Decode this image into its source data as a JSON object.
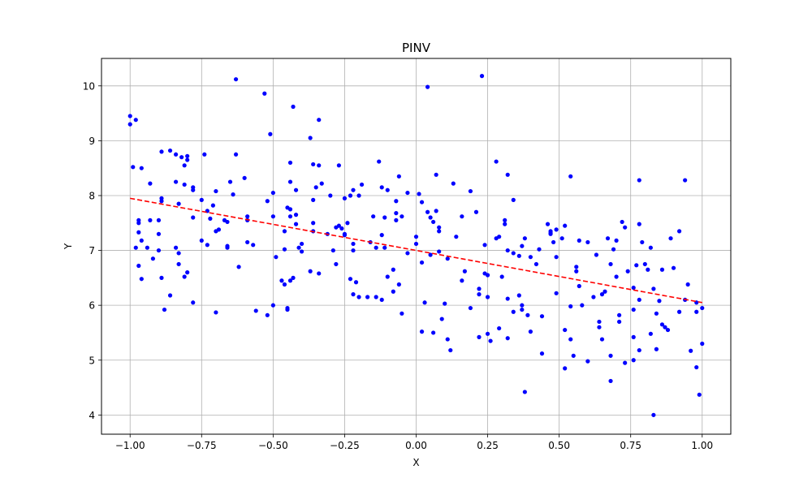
{
  "chart_data": {
    "type": "scatter",
    "title": "PINV",
    "xlabel": "X",
    "ylabel": "Y",
    "xlim": [
      -1.1,
      1.1
    ],
    "ylim": [
      3.65,
      10.5
    ],
    "grid": true,
    "x_ticks": [
      -1.0,
      -0.75,
      -0.5,
      -0.25,
      0.0,
      0.25,
      0.5,
      0.75,
      1.0
    ],
    "x_tick_labels": [
      "−1.00",
      "−0.75",
      "−0.50",
      "−0.25",
      "0.00",
      "0.25",
      "0.50",
      "0.75",
      "1.00"
    ],
    "y_ticks": [
      4,
      5,
      6,
      7,
      8,
      9,
      10
    ],
    "y_tick_labels": [
      "4",
      "5",
      "6",
      "7",
      "8",
      "9",
      "10"
    ],
    "series": [
      {
        "type": "scatter",
        "color": "#0000ff",
        "points": [
          [
            -1.0,
            9.45
          ],
          [
            -1.0,
            9.3
          ],
          [
            -0.98,
            9.38
          ],
          [
            -0.99,
            8.52
          ],
          [
            -0.96,
            8.5
          ],
          [
            -0.97,
            7.55
          ],
          [
            -0.97,
            7.5
          ],
          [
            -0.98,
            7.05
          ],
          [
            -0.97,
            7.33
          ],
          [
            -0.96,
            7.18
          ],
          [
            -0.97,
            6.72
          ],
          [
            -0.96,
            6.48
          ],
          [
            -0.93,
            8.22
          ],
          [
            -0.93,
            7.55
          ],
          [
            -0.94,
            7.05
          ],
          [
            -0.92,
            6.85
          ],
          [
            -0.9,
            7.55
          ],
          [
            -0.9,
            7.3
          ],
          [
            -0.89,
            7.95
          ],
          [
            -0.89,
            7.9
          ],
          [
            -0.89,
            8.8
          ],
          [
            -0.9,
            7.0
          ],
          [
            -0.89,
            6.5
          ],
          [
            -0.88,
            5.92
          ],
          [
            -0.86,
            8.82
          ],
          [
            -0.86,
            6.18
          ],
          [
            -0.84,
            8.75
          ],
          [
            -0.84,
            8.25
          ],
          [
            -0.83,
            7.85
          ],
          [
            -0.84,
            7.05
          ],
          [
            -0.83,
            6.95
          ],
          [
            -0.83,
            6.75
          ],
          [
            -0.82,
            8.7
          ],
          [
            -0.81,
            8.55
          ],
          [
            -0.81,
            8.2
          ],
          [
            -0.8,
            8.65
          ],
          [
            -0.8,
            8.72
          ],
          [
            -0.8,
            6.6
          ],
          [
            -0.81,
            6.52
          ],
          [
            -0.78,
            8.15
          ],
          [
            -0.78,
            8.1
          ],
          [
            -0.78,
            7.6
          ],
          [
            -0.78,
            6.05
          ],
          [
            -0.75,
            7.92
          ],
          [
            -0.75,
            7.18
          ],
          [
            -0.74,
            8.75
          ],
          [
            -0.73,
            7.72
          ],
          [
            -0.73,
            7.1
          ],
          [
            -0.72,
            7.58
          ],
          [
            -0.71,
            7.82
          ],
          [
            -0.7,
            8.08
          ],
          [
            -0.7,
            7.35
          ],
          [
            -0.69,
            7.38
          ],
          [
            -0.7,
            5.87
          ],
          [
            -0.67,
            7.55
          ],
          [
            -0.66,
            7.52
          ],
          [
            -0.66,
            7.08
          ],
          [
            -0.66,
            7.05
          ],
          [
            -0.65,
            8.25
          ],
          [
            -0.64,
            8.02
          ],
          [
            -0.63,
            10.12
          ],
          [
            -0.63,
            8.75
          ],
          [
            -0.62,
            6.7
          ],
          [
            -0.6,
            8.32
          ],
          [
            -0.59,
            7.62
          ],
          [
            -0.59,
            7.55
          ],
          [
            -0.59,
            7.15
          ],
          [
            -0.57,
            7.1
          ],
          [
            -0.56,
            5.9
          ],
          [
            -0.53,
            9.86
          ],
          [
            -0.52,
            7.9
          ],
          [
            -0.52,
            5.82
          ],
          [
            -0.51,
            9.12
          ],
          [
            -0.5,
            8.05
          ],
          [
            -0.5,
            7.62
          ],
          [
            -0.5,
            6.0
          ],
          [
            -0.49,
            6.88
          ],
          [
            -0.47,
            6.45
          ],
          [
            -0.46,
            7.35
          ],
          [
            -0.46,
            7.02
          ],
          [
            -0.46,
            6.38
          ],
          [
            -0.45,
            5.95
          ],
          [
            -0.45,
            5.92
          ],
          [
            -0.45,
            7.78
          ],
          [
            -0.44,
            7.75
          ],
          [
            -0.44,
            7.62
          ],
          [
            -0.44,
            8.6
          ],
          [
            -0.44,
            8.25
          ],
          [
            -0.43,
            9.62
          ],
          [
            -0.43,
            6.5
          ],
          [
            -0.44,
            6.45
          ],
          [
            -0.42,
            8.1
          ],
          [
            -0.42,
            7.65
          ],
          [
            -0.42,
            7.48
          ],
          [
            -0.4,
            7.12
          ],
          [
            -0.41,
            7.05
          ],
          [
            -0.4,
            6.98
          ],
          [
            -0.37,
            9.05
          ],
          [
            -0.37,
            6.62
          ],
          [
            -0.36,
            8.57
          ],
          [
            -0.36,
            7.92
          ],
          [
            -0.36,
            7.5
          ],
          [
            -0.36,
            7.35
          ],
          [
            -0.35,
            8.15
          ],
          [
            -0.34,
            9.38
          ],
          [
            -0.34,
            8.55
          ],
          [
            -0.34,
            6.58
          ],
          [
            -0.33,
            8.22
          ],
          [
            -0.31,
            7.3
          ],
          [
            -0.3,
            8.0
          ],
          [
            -0.29,
            7.0
          ],
          [
            -0.28,
            6.75
          ],
          [
            -0.28,
            7.42
          ],
          [
            -0.27,
            8.55
          ],
          [
            -0.27,
            7.45
          ],
          [
            -0.26,
            7.4
          ],
          [
            -0.25,
            7.95
          ],
          [
            -0.25,
            7.3
          ],
          [
            -0.25,
            7.28
          ],
          [
            -0.24,
            7.5
          ],
          [
            -0.23,
            6.48
          ],
          [
            -0.23,
            8.0
          ],
          [
            -0.22,
            8.1
          ],
          [
            -0.22,
            7.12
          ],
          [
            -0.22,
            6.2
          ],
          [
            -0.22,
            7.0
          ],
          [
            -0.21,
            6.42
          ],
          [
            -0.2,
            8.0
          ],
          [
            -0.2,
            6.15
          ],
          [
            -0.19,
            8.2
          ],
          [
            -0.17,
            6.15
          ],
          [
            -0.16,
            7.15
          ],
          [
            -0.15,
            7.62
          ],
          [
            -0.14,
            7.05
          ],
          [
            -0.14,
            6.15
          ],
          [
            -0.13,
            8.62
          ],
          [
            -0.12,
            8.15
          ],
          [
            -0.12,
            6.1
          ],
          [
            -0.12,
            7.28
          ],
          [
            -0.11,
            7.6
          ],
          [
            -0.11,
            7.05
          ],
          [
            -0.1,
            8.1
          ],
          [
            -0.1,
            6.52
          ],
          [
            -0.08,
            6.65
          ],
          [
            -0.08,
            6.25
          ],
          [
            -0.07,
            7.9
          ],
          [
            -0.07,
            7.68
          ],
          [
            -0.07,
            7.55
          ],
          [
            -0.06,
            8.35
          ],
          [
            -0.06,
            6.38
          ],
          [
            -0.05,
            7.62
          ],
          [
            -0.05,
            5.85
          ],
          [
            -0.03,
            8.05
          ],
          [
            -0.03,
            6.95
          ],
          [
            0.0,
            7.25
          ],
          [
            0.0,
            7.12
          ],
          [
            0.01,
            8.03
          ],
          [
            0.02,
            7.88
          ],
          [
            0.02,
            6.78
          ],
          [
            0.02,
            5.52
          ],
          [
            0.03,
            6.05
          ],
          [
            0.04,
            9.98
          ],
          [
            0.04,
            7.7
          ],
          [
            0.05,
            7.6
          ],
          [
            0.05,
            6.92
          ],
          [
            0.06,
            7.52
          ],
          [
            0.06,
            5.5
          ],
          [
            0.07,
            8.38
          ],
          [
            0.07,
            7.72
          ],
          [
            0.08,
            7.42
          ],
          [
            0.08,
            7.35
          ],
          [
            0.08,
            6.98
          ],
          [
            0.09,
            5.75
          ],
          [
            0.1,
            6.03
          ],
          [
            0.11,
            6.85
          ],
          [
            0.11,
            5.38
          ],
          [
            0.12,
            5.18
          ],
          [
            0.13,
            8.22
          ],
          [
            0.14,
            7.25
          ],
          [
            0.16,
            7.62
          ],
          [
            0.16,
            6.45
          ],
          [
            0.17,
            6.62
          ],
          [
            0.19,
            8.08
          ],
          [
            0.19,
            5.95
          ],
          [
            0.21,
            7.7
          ],
          [
            0.22,
            6.2
          ],
          [
            0.22,
            6.3
          ],
          [
            0.22,
            5.42
          ],
          [
            0.23,
            10.18
          ],
          [
            0.24,
            7.1
          ],
          [
            0.24,
            6.58
          ],
          [
            0.25,
            6.55
          ],
          [
            0.25,
            6.15
          ],
          [
            0.25,
            5.48
          ],
          [
            0.26,
            5.35
          ],
          [
            0.28,
            8.62
          ],
          [
            0.28,
            7.22
          ],
          [
            0.29,
            7.25
          ],
          [
            0.29,
            5.58
          ],
          [
            0.3,
            6.52
          ],
          [
            0.31,
            7.48
          ],
          [
            0.31,
            7.55
          ],
          [
            0.32,
            8.38
          ],
          [
            0.32,
            7.0
          ],
          [
            0.32,
            6.12
          ],
          [
            0.32,
            5.4
          ],
          [
            0.34,
            7.92
          ],
          [
            0.34,
            6.95
          ],
          [
            0.34,
            5.88
          ],
          [
            0.36,
            6.9
          ],
          [
            0.36,
            6.18
          ],
          [
            0.37,
            7.08
          ],
          [
            0.37,
            6.0
          ],
          [
            0.37,
            5.92
          ],
          [
            0.38,
            7.22
          ],
          [
            0.38,
            4.42
          ],
          [
            0.39,
            5.82
          ],
          [
            0.4,
            6.88
          ],
          [
            0.4,
            5.52
          ],
          [
            0.42,
            6.75
          ],
          [
            0.43,
            7.02
          ],
          [
            0.44,
            5.8
          ],
          [
            0.44,
            5.12
          ],
          [
            0.46,
            7.48
          ],
          [
            0.47,
            7.35
          ],
          [
            0.47,
            7.32
          ],
          [
            0.47,
            7.3
          ],
          [
            0.48,
            7.15
          ],
          [
            0.49,
            6.88
          ],
          [
            0.49,
            6.22
          ],
          [
            0.49,
            7.38
          ],
          [
            0.51,
            7.22
          ],
          [
            0.52,
            7.45
          ],
          [
            0.52,
            5.55
          ],
          [
            0.52,
            4.85
          ],
          [
            0.54,
            8.35
          ],
          [
            0.54,
            5.98
          ],
          [
            0.54,
            5.38
          ],
          [
            0.55,
            5.08
          ],
          [
            0.56,
            6.7
          ],
          [
            0.56,
            6.62
          ],
          [
            0.57,
            7.18
          ],
          [
            0.57,
            6.35
          ],
          [
            0.58,
            6.0
          ],
          [
            0.6,
            7.15
          ],
          [
            0.6,
            4.98
          ],
          [
            0.62,
            6.15
          ],
          [
            0.63,
            6.92
          ],
          [
            0.64,
            5.7
          ],
          [
            0.64,
            5.6
          ],
          [
            0.65,
            5.38
          ],
          [
            0.65,
            6.2
          ],
          [
            0.66,
            6.25
          ],
          [
            0.67,
            7.22
          ],
          [
            0.68,
            6.75
          ],
          [
            0.68,
            5.08
          ],
          [
            0.68,
            4.62
          ],
          [
            0.69,
            7.02
          ],
          [
            0.7,
            7.18
          ],
          [
            0.7,
            6.52
          ],
          [
            0.71,
            5.82
          ],
          [
            0.71,
            5.7
          ],
          [
            0.72,
            7.52
          ],
          [
            0.73,
            7.42
          ],
          [
            0.73,
            4.95
          ],
          [
            0.74,
            6.62
          ],
          [
            0.76,
            6.32
          ],
          [
            0.76,
            5.92
          ],
          [
            0.76,
            5.42
          ],
          [
            0.76,
            5.0
          ],
          [
            0.77,
            6.73
          ],
          [
            0.78,
            8.28
          ],
          [
            0.78,
            7.48
          ],
          [
            0.78,
            6.1
          ],
          [
            0.78,
            5.18
          ],
          [
            0.79,
            7.15
          ],
          [
            0.8,
            6.75
          ],
          [
            0.81,
            6.65
          ],
          [
            0.82,
            7.05
          ],
          [
            0.82,
            5.48
          ],
          [
            0.83,
            6.3
          ],
          [
            0.83,
            4.0
          ],
          [
            0.84,
            5.85
          ],
          [
            0.84,
            5.2
          ],
          [
            0.85,
            6.08
          ],
          [
            0.86,
            6.65
          ],
          [
            0.86,
            5.65
          ],
          [
            0.87,
            5.6
          ],
          [
            0.88,
            5.55
          ],
          [
            0.89,
            7.22
          ],
          [
            0.9,
            6.68
          ],
          [
            0.92,
            7.35
          ],
          [
            0.92,
            5.88
          ],
          [
            0.94,
            8.28
          ],
          [
            0.94,
            6.1
          ],
          [
            0.95,
            6.38
          ],
          [
            0.96,
            5.17
          ],
          [
            0.98,
            6.05
          ],
          [
            0.98,
            5.88
          ],
          [
            0.98,
            4.87
          ],
          [
            0.99,
            4.37
          ],
          [
            1.0,
            5.95
          ],
          [
            1.0,
            5.3
          ]
        ]
      },
      {
        "type": "line",
        "style": "dashed",
        "color": "#ff0000",
        "points": [
          [
            -1.0,
            7.95
          ],
          [
            1.0,
            6.05
          ]
        ]
      }
    ]
  }
}
